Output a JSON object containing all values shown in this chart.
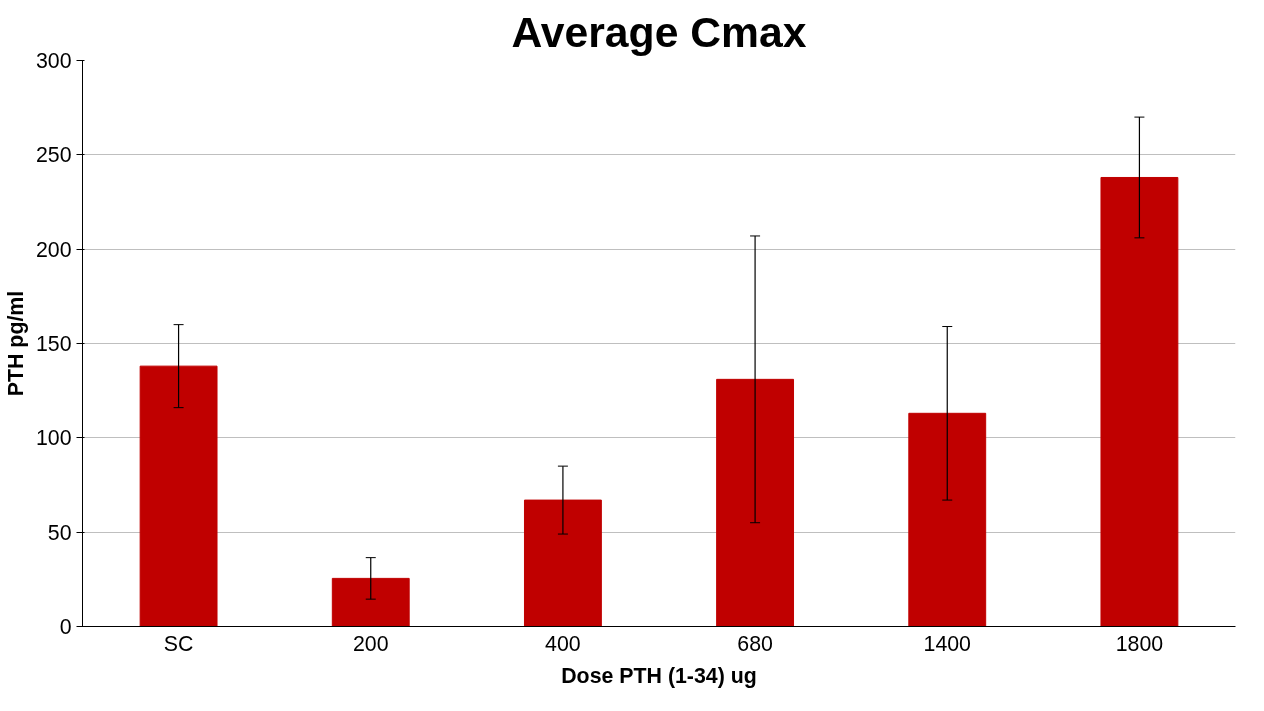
{
  "chart_data": {
    "type": "bar",
    "title": "Average Cmax",
    "xlabel": "Dose PTH (1-34) ug",
    "ylabel": "PTH pg/ml",
    "categories": [
      "SC",
      "200",
      "400",
      "680",
      "1400",
      "1800"
    ],
    "values": [
      138,
      25.5,
      67,
      131,
      113,
      238
    ],
    "errors": [
      22,
      11,
      18,
      76,
      46,
      32
    ],
    "color": "#c00000",
    "ylim": [
      0,
      300
    ],
    "yticks": [
      0,
      50,
      100,
      150,
      200,
      250,
      300
    ],
    "grid": "y"
  }
}
